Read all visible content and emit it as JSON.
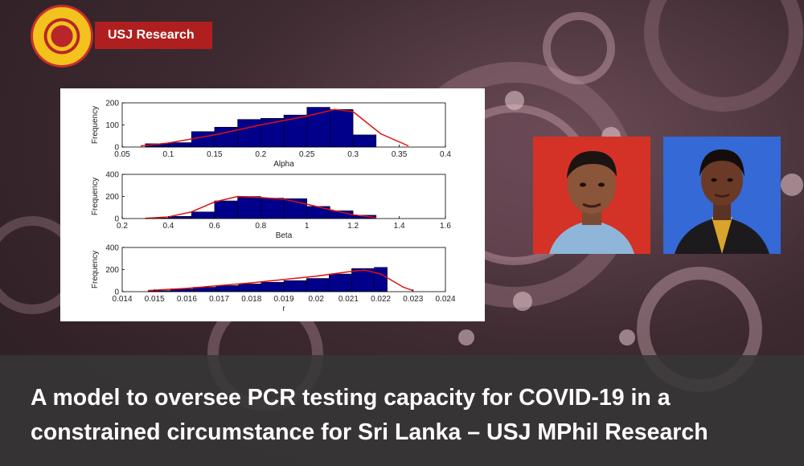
{
  "brand": {
    "label": "USJ Research"
  },
  "headline": {
    "line1": "A model to oversee PCR testing capacity for COVID-19 in a",
    "line2": "constrained circumstance for Sri Lanka – USJ MPhil Research"
  },
  "colors": {
    "brand_red": "#b01f1f",
    "logo_gold": "#f3c21c",
    "bar_fill": "#00008b",
    "fit_line": "#dd1111"
  },
  "chart_data": [
    {
      "type": "bar",
      "xlabel": "Alpha",
      "ylabel": "Frequency",
      "xlim": [
        0.05,
        0.4
      ],
      "ylim": [
        0,
        200
      ],
      "xticks": [
        "0.05",
        "0.1",
        "0.15",
        "0.2",
        "0.25",
        "0.3",
        "0.35",
        "0.4"
      ],
      "yticks": [
        "0",
        "100",
        "200"
      ],
      "bin_edges": [
        0.075,
        0.1,
        0.125,
        0.15,
        0.175,
        0.2,
        0.225,
        0.25,
        0.275,
        0.3,
        0.325,
        0.35
      ],
      "values": [
        15,
        20,
        70,
        90,
        125,
        130,
        145,
        180,
        170,
        55,
        0
      ],
      "fit_curve": [
        [
          0.07,
          5
        ],
        [
          0.1,
          18
        ],
        [
          0.15,
          55
        ],
        [
          0.2,
          100
        ],
        [
          0.25,
          140
        ],
        [
          0.28,
          170
        ],
        [
          0.3,
          160
        ],
        [
          0.33,
          60
        ],
        [
          0.36,
          5
        ]
      ]
    },
    {
      "type": "bar",
      "xlabel": "Beta",
      "ylabel": "Frequency",
      "xlim": [
        0.2,
        1.6
      ],
      "ylim": [
        0,
        400
      ],
      "xticks": [
        "0.2",
        "0.4",
        "0.6",
        "0.8",
        "1",
        "1.2",
        "1.4",
        "1.6"
      ],
      "yticks": [
        "0",
        "200",
        "400"
      ],
      "bin_edges": [
        0.3,
        0.4,
        0.5,
        0.6,
        0.7,
        0.8,
        0.9,
        1.0,
        1.1,
        1.2,
        1.3
      ],
      "values": [
        5,
        20,
        60,
        160,
        200,
        185,
        180,
        110,
        70,
        30
      ],
      "fit_curve": [
        [
          0.3,
          2
        ],
        [
          0.4,
          15
        ],
        [
          0.5,
          60
        ],
        [
          0.6,
          150
        ],
        [
          0.7,
          200
        ],
        [
          0.8,
          190
        ],
        [
          0.9,
          175
        ],
        [
          1.0,
          130
        ],
        [
          1.1,
          80
        ],
        [
          1.2,
          35
        ],
        [
          1.3,
          8
        ]
      ]
    },
    {
      "type": "bar",
      "xlabel": "r",
      "ylabel": "Frequency",
      "xlim": [
        0.014,
        0.024
      ],
      "ylim": [
        0,
        400
      ],
      "xticks": [
        "0.014",
        "0.015",
        "0.016",
        "0.017",
        "0.018",
        "0.019",
        "0.02",
        "0.021",
        "0.022",
        "0.023",
        "0.024"
      ],
      "yticks": [
        "0",
        "200",
        "400"
      ],
      "bin_edges": [
        0.0148,
        0.0155,
        0.0162,
        0.0169,
        0.0176,
        0.0183,
        0.019,
        0.0197,
        0.0204,
        0.0211,
        0.0218,
        0.0222
      ],
      "values": [
        10,
        25,
        40,
        55,
        70,
        85,
        100,
        120,
        160,
        210,
        220
      ],
      "fit_curve": [
        [
          0.0148,
          10
        ],
        [
          0.016,
          30
        ],
        [
          0.017,
          55
        ],
        [
          0.018,
          80
        ],
        [
          0.019,
          110
        ],
        [
          0.02,
          140
        ],
        [
          0.021,
          180
        ],
        [
          0.0215,
          195
        ],
        [
          0.022,
          160
        ],
        [
          0.0227,
          40
        ],
        [
          0.023,
          10
        ]
      ]
    }
  ]
}
